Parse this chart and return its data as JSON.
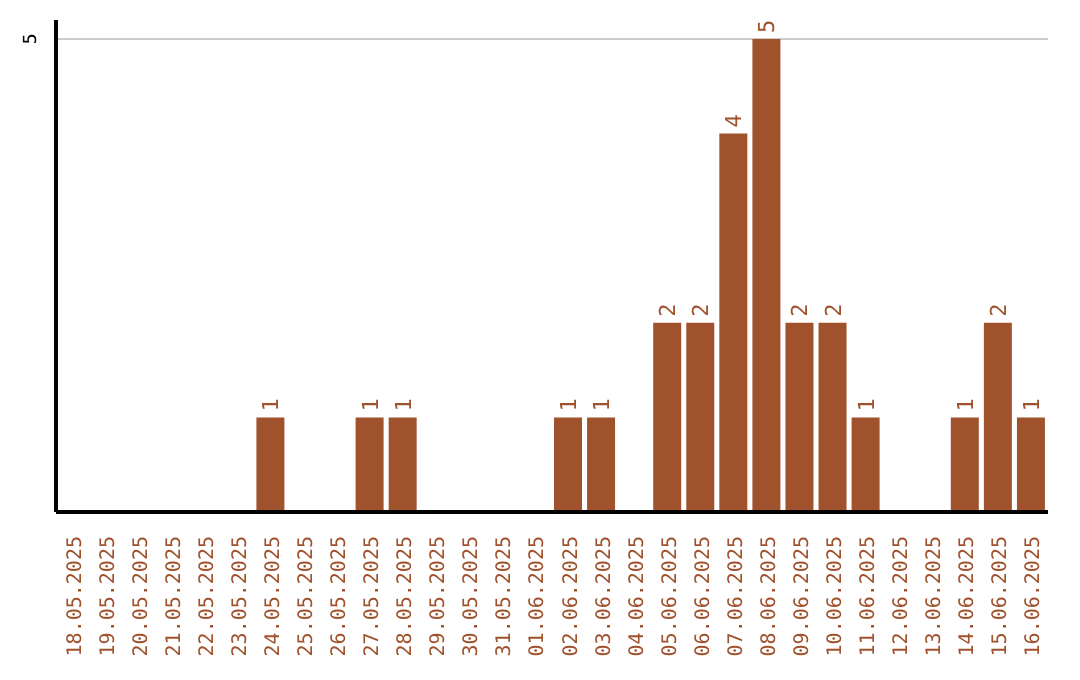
{
  "chart_data": {
    "type": "bar",
    "categories": [
      "18.05.2025",
      "19.05.2025",
      "20.05.2025",
      "21.05.2025",
      "22.05.2025",
      "23.05.2025",
      "24.05.2025",
      "25.05.2025",
      "26.05.2025",
      "27.05.2025",
      "28.05.2025",
      "29.05.2025",
      "30.05.2025",
      "31.05.2025",
      "01.06.2025",
      "02.06.2025",
      "03.06.2025",
      "04.06.2025",
      "05.06.2025",
      "06.06.2025",
      "07.06.2025",
      "08.06.2025",
      "09.06.2025",
      "10.06.2025",
      "11.06.2025",
      "12.06.2025",
      "13.06.2025",
      "14.06.2025",
      "15.06.2025",
      "16.06.2025"
    ],
    "values": [
      0,
      0,
      0,
      0,
      0,
      0,
      1,
      0,
      0,
      1,
      1,
      0,
      0,
      0,
      0,
      1,
      1,
      0,
      2,
      2,
      4,
      5,
      2,
      2,
      1,
      0,
      0,
      1,
      2,
      1
    ],
    "value_labels": [
      null,
      null,
      null,
      null,
      null,
      null,
      "1",
      null,
      null,
      "1",
      "1",
      null,
      null,
      null,
      null,
      "1",
      "1",
      null,
      "2",
      "2",
      "4",
      "5",
      "2",
      "2",
      "1",
      null,
      null,
      "1",
      "2",
      "1"
    ],
    "color": "#a0522d",
    "ylim": [
      0,
      5.2
    ],
    "yticks": [
      5
    ],
    "grid": "y"
  }
}
